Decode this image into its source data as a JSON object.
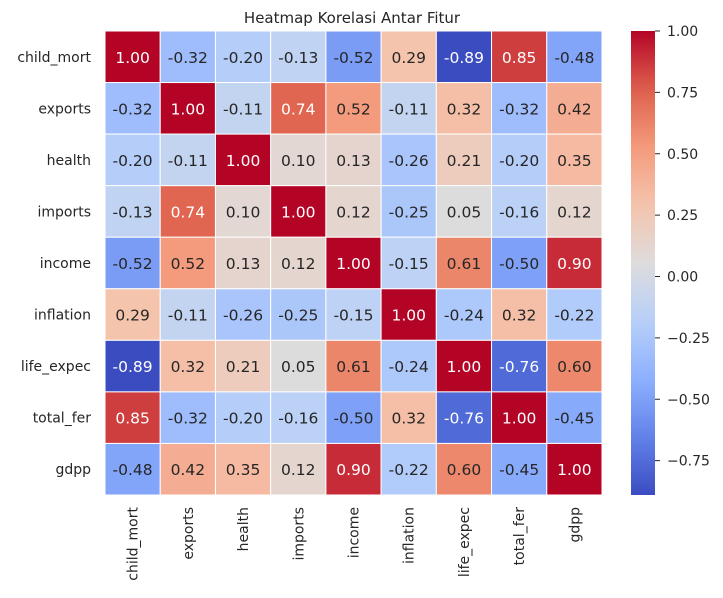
{
  "chart_data": {
    "type": "heatmap",
    "title": "Heatmap Korelasi Antar Fitur",
    "xlabel": "",
    "ylabel": "",
    "rows": [
      "child_mort",
      "exports",
      "health",
      "imports",
      "income",
      "inflation",
      "life_expec",
      "total_fer",
      "gdpp"
    ],
    "columns": [
      "child_mort",
      "exports",
      "health",
      "imports",
      "income",
      "inflation",
      "life_expec",
      "total_fer",
      "gdpp"
    ],
    "values": [
      [
        1.0,
        -0.32,
        -0.2,
        -0.13,
        -0.52,
        0.29,
        -0.89,
        0.85,
        -0.48
      ],
      [
        -0.32,
        1.0,
        -0.11,
        0.74,
        0.52,
        -0.11,
        0.32,
        -0.32,
        0.42
      ],
      [
        -0.2,
        -0.11,
        1.0,
        0.1,
        0.13,
        -0.26,
        0.21,
        -0.2,
        0.35
      ],
      [
        -0.13,
        0.74,
        0.1,
        1.0,
        0.12,
        -0.25,
        0.05,
        -0.16,
        0.12
      ],
      [
        -0.52,
        0.52,
        0.13,
        0.12,
        1.0,
        -0.15,
        0.61,
        -0.5,
        0.9
      ],
      [
        0.29,
        -0.11,
        -0.26,
        -0.25,
        -0.15,
        1.0,
        -0.24,
        0.32,
        -0.22
      ],
      [
        -0.89,
        0.32,
        0.21,
        0.05,
        0.61,
        -0.24,
        1.0,
        -0.76,
        0.6
      ],
      [
        0.85,
        -0.32,
        -0.2,
        -0.16,
        -0.5,
        0.32,
        -0.76,
        1.0,
        -0.45
      ],
      [
        -0.48,
        0.42,
        0.35,
        0.12,
        0.9,
        -0.22,
        0.6,
        -0.45,
        1.0
      ]
    ],
    "value_format": "0.00",
    "colormap": "coolwarm",
    "vmin": -0.89,
    "vmax": 1.0,
    "colorbar_ticks": [
      "1.00",
      "0.75",
      "0.50",
      "0.25",
      "0.00",
      "−0.25",
      "−0.50",
      "−0.75"
    ],
    "colorbar_tick_values": [
      1.0,
      0.75,
      0.5,
      0.25,
      0.0,
      -0.25,
      -0.5,
      -0.75
    ],
    "annotations": true,
    "grid": false,
    "cell_border_color": "#ffffff",
    "text_color_dark": "#262626",
    "text_color_light": "#ffffff"
  }
}
